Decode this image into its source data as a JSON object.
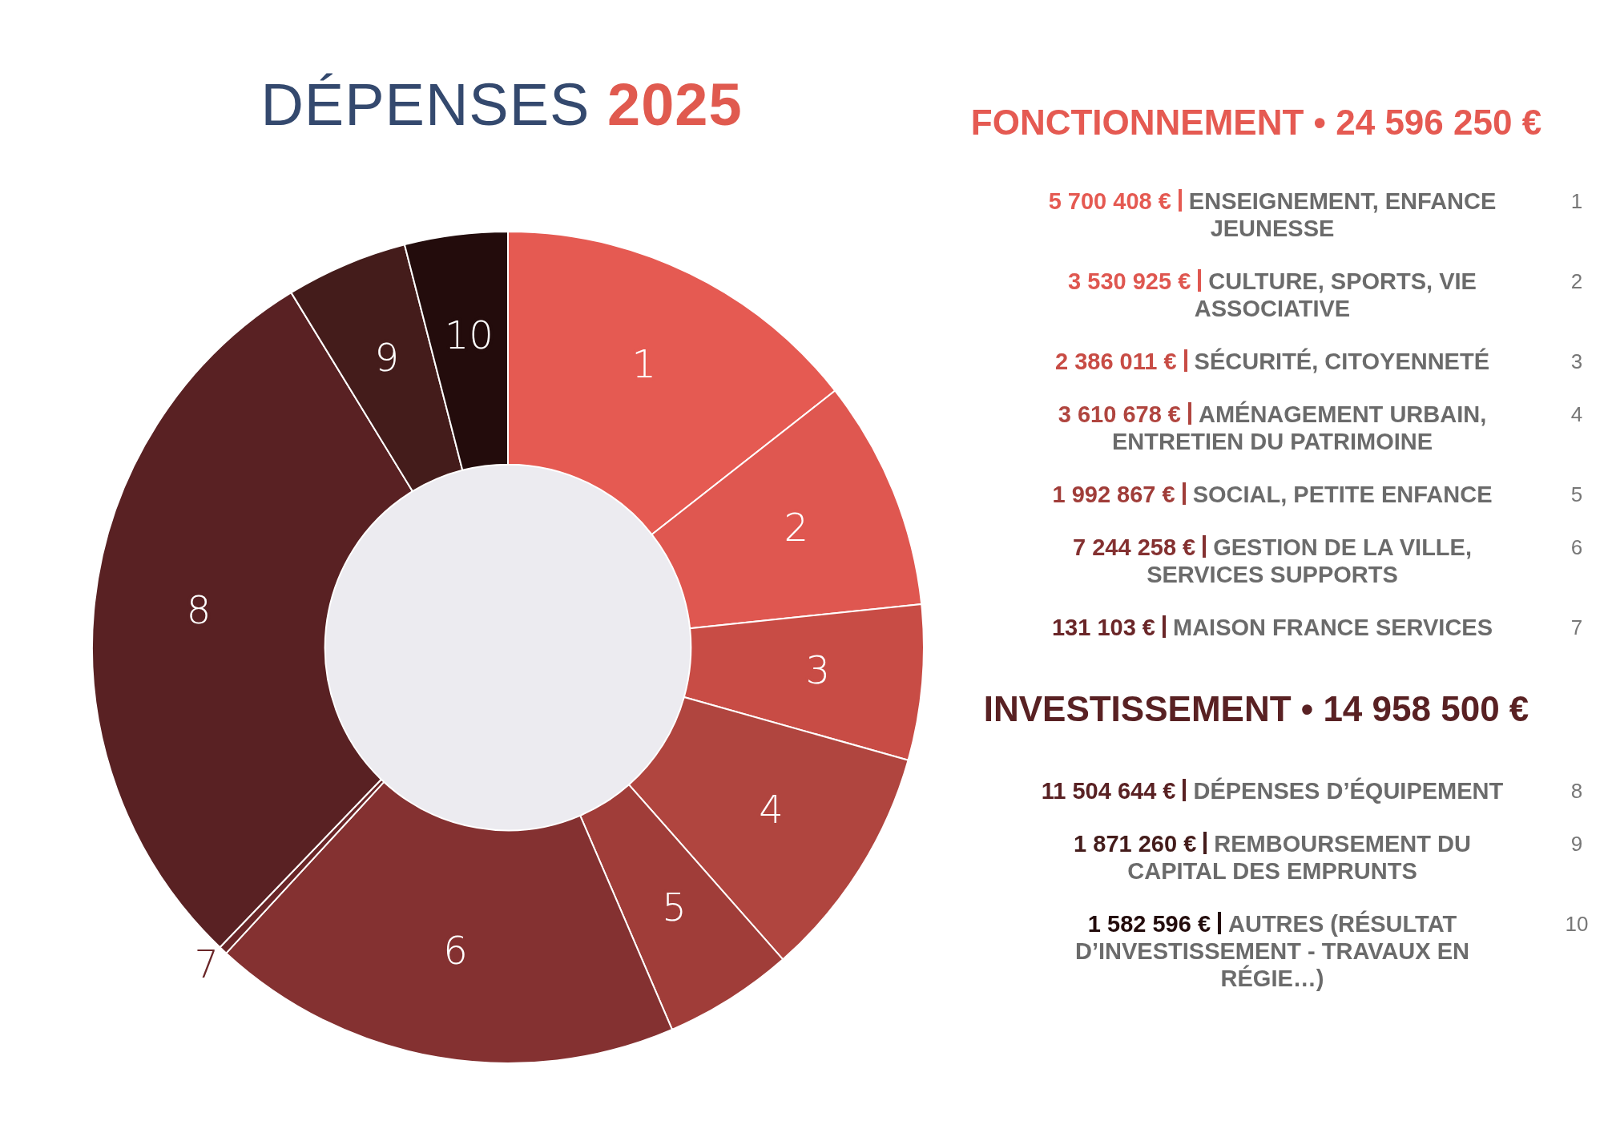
{
  "chart_data": {
    "type": "donut",
    "title": "DÉPENSES 2025",
    "categories": [
      "1",
      "2",
      "3",
      "4",
      "5",
      "6",
      "7",
      "8",
      "9",
      "10"
    ],
    "values": [
      14.41,
      8.93,
      6.03,
      9.13,
      5.04,
      18.31,
      0.33,
      29.09,
      4.73,
      4.0
    ],
    "colors": [
      "#e55a52",
      "#df5750",
      "#c84c45",
      "#b0453f",
      "#a03d39",
      "#843131",
      "#6a2628",
      "#592123",
      "#441c1b",
      "#230c0c"
    ],
    "annotations": [
      "FONCTIONNEMENT • 24 596 250 €",
      "INVESTISSEMENT • 14 958 500 €",
      "5 700 408 €",
      "ENSEIGNEMENT, ENFANCE JEUNESSE",
      "3 530 925 €",
      "CULTURE, SPORTS, VIE ASSOCIATIVE",
      "2 386 011 €",
      "SÉCURITÉ, CITOYENNETÉ",
      "3 610 678 €",
      "AMÉNAGEMENT URBAIN, ENTRETIEN DU PATRIMOINE",
      "1 992 867 €",
      "SOCIAL, PETITE ENFANCE",
      "7 244 258 €",
      "GESTION DE LA VILLE, SERVICES SUPPORTS",
      "131 103 €",
      "MAISON FRANCE SERVICES",
      "11 504 644 €",
      "DÉPENSES D’ÉQUIPEMENT",
      "1 871 260 €",
      "REMBOURSEMENT DU CAPITAL DES EMPRUNTS",
      "1 582 596 €",
      "AUTRES (RÉSULTAT D’INVESTISSEMENT - TRAVAUX EN RÉGIE…)"
    ]
  }
}
